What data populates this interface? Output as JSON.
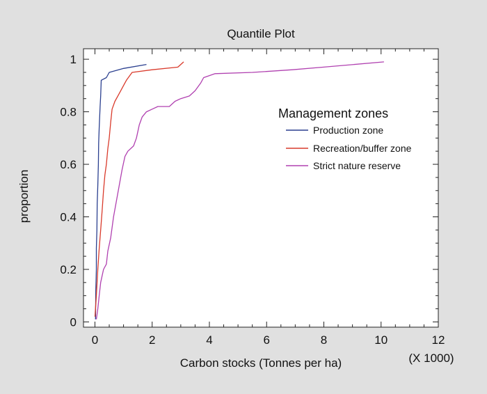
{
  "chart_data": {
    "type": "line",
    "title": "Quantile Plot",
    "xlabel": "Carbon stocks (Tonnes per ha)",
    "x_multiplier_label": "(X 1000)",
    "ylabel": "proportion",
    "xlim": [
      -0.4,
      12
    ],
    "ylim": [
      -0.02,
      1.04
    ],
    "x_ticks": [
      "0",
      "2",
      "4",
      "6",
      "8",
      "10",
      "12"
    ],
    "y_ticks": [
      "0",
      "0.2",
      "0.4",
      "0.6",
      "0.8",
      "1"
    ],
    "x_tick_values": [
      0,
      2,
      4,
      6,
      8,
      10,
      12
    ],
    "y_tick_values": [
      0,
      0.2,
      0.4,
      0.6,
      0.8,
      1
    ],
    "grid": false,
    "legend": {
      "title": "Management zones",
      "placement": "top-right"
    },
    "series": [
      {
        "name": "Production zone",
        "color": "#2a3f8f",
        "points": [
          [
            0.02,
            0.01
          ],
          [
            0.03,
            0.12
          ],
          [
            0.05,
            0.2
          ],
          [
            0.05,
            0.28
          ],
          [
            0.07,
            0.35
          ],
          [
            0.08,
            0.45
          ],
          [
            0.1,
            0.52
          ],
          [
            0.12,
            0.6
          ],
          [
            0.13,
            0.68
          ],
          [
            0.15,
            0.74
          ],
          [
            0.18,
            0.82
          ],
          [
            0.2,
            0.86
          ],
          [
            0.22,
            0.92
          ],
          [
            0.4,
            0.93
          ],
          [
            0.5,
            0.95
          ],
          [
            1.0,
            0.965
          ],
          [
            1.8,
            0.98
          ]
        ]
      },
      {
        "name": "Recreation/buffer zone",
        "color": "#d93a2b",
        "points": [
          [
            0.0,
            0.02
          ],
          [
            0.05,
            0.1
          ],
          [
            0.1,
            0.2
          ],
          [
            0.15,
            0.28
          ],
          [
            0.2,
            0.35
          ],
          [
            0.25,
            0.42
          ],
          [
            0.3,
            0.5
          ],
          [
            0.35,
            0.56
          ],
          [
            0.4,
            0.6
          ],
          [
            0.45,
            0.66
          ],
          [
            0.5,
            0.7
          ],
          [
            0.55,
            0.76
          ],
          [
            0.6,
            0.81
          ],
          [
            0.7,
            0.84
          ],
          [
            0.8,
            0.86
          ],
          [
            0.9,
            0.88
          ],
          [
            1.0,
            0.9
          ],
          [
            1.1,
            0.92
          ],
          [
            1.3,
            0.95
          ],
          [
            2.0,
            0.96
          ],
          [
            2.9,
            0.97
          ],
          [
            3.1,
            0.99
          ]
        ]
      },
      {
        "name": "Strict nature reserve",
        "color": "#b040b0",
        "points": [
          [
            0.05,
            0.01
          ],
          [
            0.1,
            0.05
          ],
          [
            0.15,
            0.1
          ],
          [
            0.2,
            0.15
          ],
          [
            0.3,
            0.2
          ],
          [
            0.4,
            0.22
          ],
          [
            0.45,
            0.27
          ],
          [
            0.55,
            0.32
          ],
          [
            0.65,
            0.4
          ],
          [
            0.75,
            0.46
          ],
          [
            0.85,
            0.52
          ],
          [
            0.95,
            0.58
          ],
          [
            1.05,
            0.63
          ],
          [
            1.15,
            0.65
          ],
          [
            1.35,
            0.67
          ],
          [
            1.45,
            0.7
          ],
          [
            1.55,
            0.75
          ],
          [
            1.65,
            0.78
          ],
          [
            1.8,
            0.8
          ],
          [
            2.0,
            0.81
          ],
          [
            2.2,
            0.82
          ],
          [
            2.6,
            0.82
          ],
          [
            2.8,
            0.84
          ],
          [
            3.0,
            0.85
          ],
          [
            3.3,
            0.86
          ],
          [
            3.5,
            0.88
          ],
          [
            3.7,
            0.91
          ],
          [
            3.8,
            0.93
          ],
          [
            4.2,
            0.945
          ],
          [
            5.5,
            0.95
          ],
          [
            6.9,
            0.96
          ],
          [
            8.0,
            0.97
          ],
          [
            10.1,
            0.99
          ]
        ]
      }
    ]
  }
}
